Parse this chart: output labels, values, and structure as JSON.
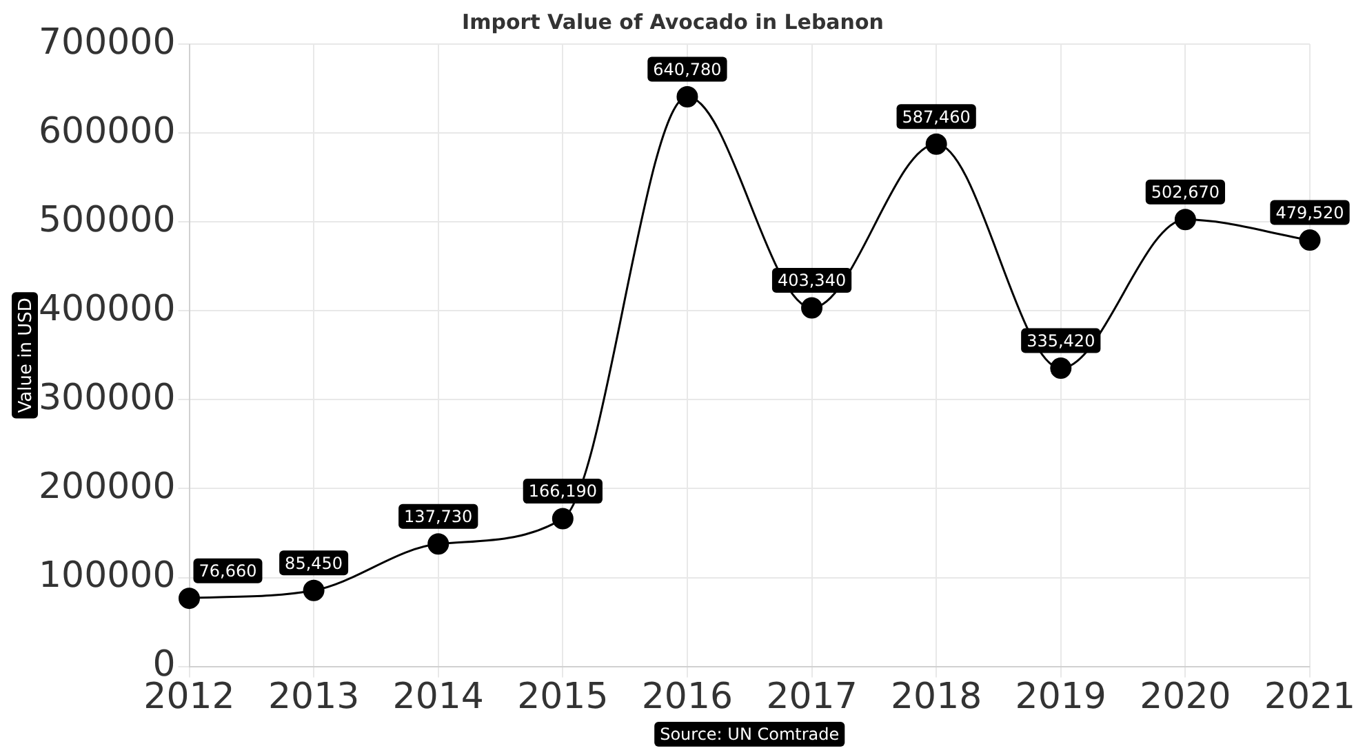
{
  "chart_data": {
    "type": "line",
    "title": "Import Value of Avocado in Lebanon",
    "ylabel": "Value in USD",
    "categories": [
      "2012",
      "2013",
      "2014",
      "2015",
      "2016",
      "2017",
      "2018",
      "2019",
      "2020",
      "2021"
    ],
    "values": [
      76660,
      85450,
      137730,
      166190,
      640780,
      403340,
      587460,
      335420,
      502670,
      479520
    ],
    "color": "#000000",
    "ylim": [
      0,
      700000
    ],
    "yticks": [
      0,
      100000,
      200000,
      300000,
      400000,
      500000,
      600000,
      700000
    ],
    "value_labels": [
      "76,660",
      "85,450",
      "137,730",
      "166,190",
      "640,780",
      "403,340",
      "587,460",
      "335,420",
      "502,670",
      "479,520"
    ],
    "grid": true,
    "marker": "circle",
    "line_style": "solid",
    "annotations": [
      "Source: UN Comtrade"
    ]
  }
}
